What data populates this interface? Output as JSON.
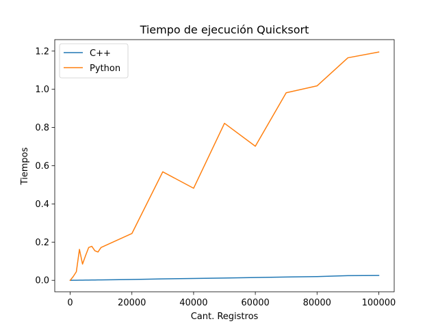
{
  "chart_data": {
    "type": "line",
    "title": "Tiempo de ejecución Quicksort",
    "xlabel": "Cant. Registros",
    "ylabel": "Tiempos",
    "xlim": [
      -5000,
      105000
    ],
    "ylim": [
      -0.06,
      1.26
    ],
    "xticks": [
      0,
      20000,
      40000,
      60000,
      80000,
      100000
    ],
    "yticks": [
      0.0,
      0.2,
      0.4,
      0.6,
      0.8,
      1.0,
      1.2
    ],
    "xtick_labels": [
      "0",
      "20000",
      "40000",
      "60000",
      "80000",
      "100000"
    ],
    "ytick_labels": [
      "0.0",
      "0.2",
      "0.4",
      "0.6",
      "0.8",
      "1.0",
      "1.2"
    ],
    "grid": false,
    "legend_position": "top-left",
    "series": [
      {
        "name": "C++",
        "color": "#1f77b4",
        "x": [
          0,
          100,
          1000,
          2000,
          3000,
          4000,
          5000,
          6000,
          7000,
          8000,
          9000,
          10000,
          20000,
          30000,
          40000,
          50000,
          60000,
          70000,
          80000,
          90000,
          100000
        ],
        "y": [
          0.0,
          0.0,
          0.0003,
          0.0005,
          0.0008,
          0.001,
          0.0012,
          0.0014,
          0.0016,
          0.0018,
          0.002,
          0.0022,
          0.0045,
          0.0075,
          0.0098,
          0.0122,
          0.0146,
          0.0172,
          0.0198,
          0.0245,
          0.0255
        ]
      },
      {
        "name": "Python",
        "color": "#ff7f0e",
        "x": [
          0,
          100,
          1000,
          2000,
          3000,
          4000,
          5000,
          6000,
          7000,
          8000,
          9000,
          10000,
          20000,
          30000,
          40000,
          50000,
          60000,
          70000,
          80000,
          90000,
          100000
        ],
        "y": [
          0.0,
          0.002,
          0.02,
          0.045,
          0.162,
          0.085,
          0.13,
          0.172,
          0.178,
          0.155,
          0.148,
          0.172,
          0.245,
          0.568,
          0.482,
          0.822,
          0.702,
          0.982,
          1.018,
          1.165,
          1.195
        ]
      }
    ]
  }
}
